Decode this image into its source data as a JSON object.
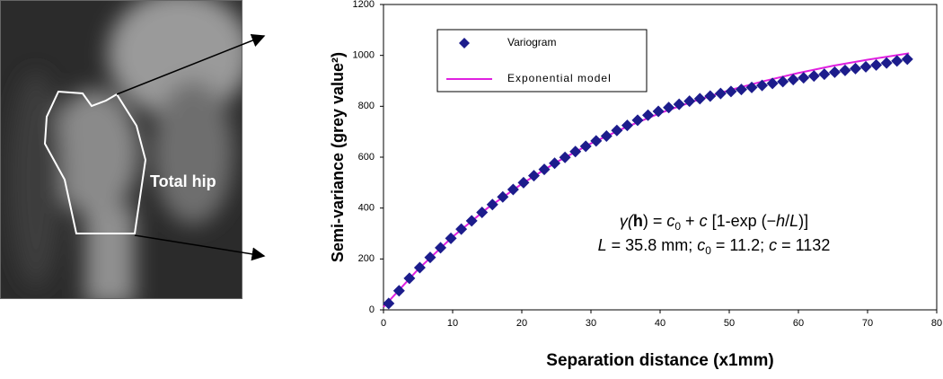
{
  "figure": {
    "image_label": "Total hip"
  },
  "chart_data": {
    "type": "scatter",
    "xlabel": "Separation distance (x1mm)",
    "ylabel": "Semi-variance  (grey value²)",
    "xlim": [
      0,
      80
    ],
    "xticks": [
      0,
      10,
      20,
      30,
      40,
      50,
      60,
      70,
      80
    ],
    "ylim": [
      0,
      1200
    ],
    "yticks": [
      0,
      200,
      400,
      600,
      800,
      1000,
      1200
    ],
    "series": [
      {
        "name": "Variogram",
        "type": "scatter",
        "color": "#1c1c8c",
        "marker": "diamond",
        "x": [
          0.75,
          2.25,
          3.75,
          5.25,
          6.75,
          8.25,
          9.75,
          11.25,
          12.75,
          14.25,
          15.75,
          17.25,
          18.75,
          20.25,
          21.75,
          23.25,
          24.75,
          26.25,
          27.75,
          29.25,
          30.75,
          32.25,
          33.75,
          35.25,
          36.75,
          38.25,
          39.75,
          41.25,
          42.75,
          44.25,
          45.75,
          47.25,
          48.75,
          50.25,
          51.75,
          53.25,
          54.75,
          56.25,
          57.75,
          59.25,
          60.75,
          62.25,
          63.75,
          65.25,
          66.75,
          68.25,
          69.75,
          71.25,
          72.75,
          74.25,
          75.75
        ],
        "values": [
          25,
          75,
          124,
          166,
          206,
          244,
          281,
          317,
          350,
          383,
          414,
          444,
          473,
          500,
          527,
          552,
          576,
          599,
          622,
          643,
          664,
          683,
          705,
          725,
          745,
          765,
          780,
          795,
          808,
          820,
          830,
          840,
          850,
          858,
          866,
          874,
          882,
          890,
          897,
          905,
          912,
          919,
          926,
          934,
          941,
          948,
          955,
          962,
          970,
          978,
          985
        ]
      },
      {
        "name": "Exponential model",
        "type": "line",
        "color": "#e020e0",
        "x": [
          0,
          5,
          10,
          15,
          20,
          25,
          30,
          35,
          40,
          45,
          50,
          55,
          60,
          65,
          70,
          76
        ],
        "values": [
          11.2,
          159,
          287,
          399,
          495,
          580,
          654,
          717,
          773,
          821,
          863,
          899,
          931,
          959,
          983,
          1008
        ]
      }
    ],
    "annotations": [
      [
        "γ(",
        "h",
        ") = ",
        "c",
        "0",
        " + ",
        "c",
        " [1-exp (−",
        "h",
        "/",
        "L",
        ")]"
      ],
      [
        "L",
        " = 35.8 mm; ",
        "c",
        "0",
        " = 11.2; ",
        "c",
        " = 1132"
      ]
    ]
  }
}
